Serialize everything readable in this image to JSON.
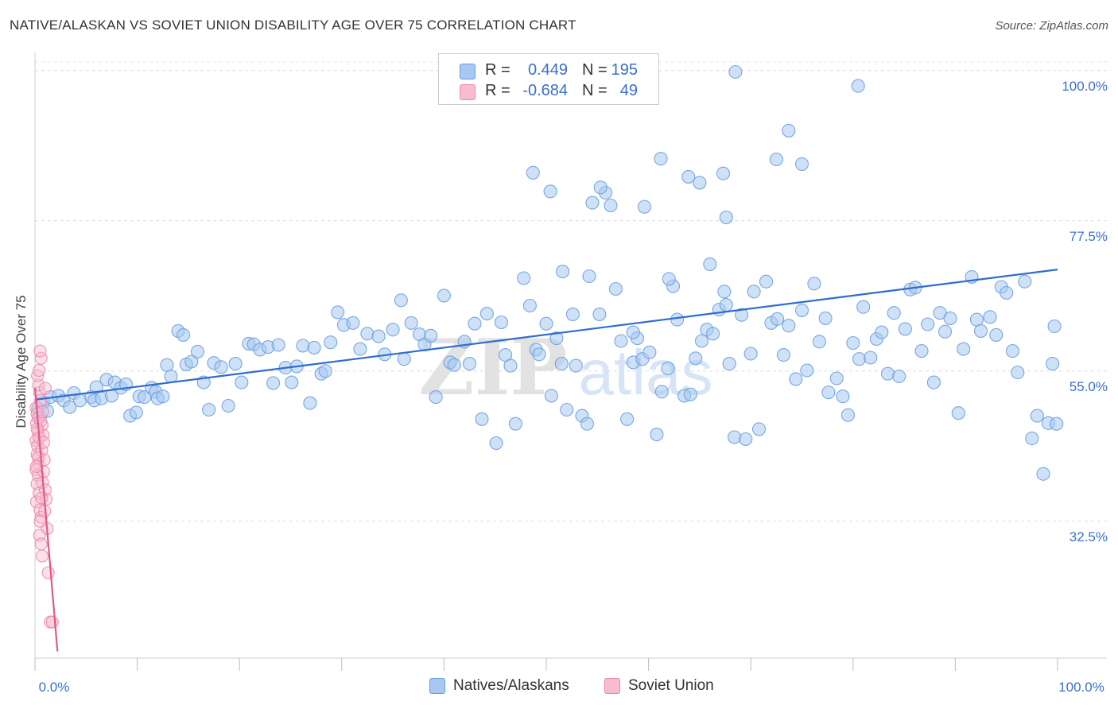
{
  "title": "NATIVE/ALASKAN VS SOVIET UNION DISABILITY AGE OVER 75 CORRELATION CHART",
  "source": "Source: ZipAtlas.com",
  "watermark": {
    "zip": "ZIP",
    "atlas": "atlas"
  },
  "legend": {
    "rows": [
      {
        "r_label": "R =",
        "r_value": "0.449",
        "n_label": "N =",
        "n_value": "195",
        "color": "#a8c8f0",
        "border": "#6b9ee0"
      },
      {
        "r_label": "R =",
        "r_value": "-0.684",
        "n_label": "N =",
        "n_value": "49",
        "color": "#f8bcd0",
        "border": "#ea8aaa"
      }
    ]
  },
  "bottom_legend": [
    {
      "label": "Natives/Alaskans",
      "color": "#a8c8f0",
      "border": "#6b9ee0"
    },
    {
      "label": "Soviet Union",
      "color": "#f8bcd0",
      "border": "#ea8aaa"
    }
  ],
  "chart_data": {
    "type": "scatter",
    "title": "NATIVE/ALASKAN VS SOVIET UNION DISABILITY AGE OVER 75 CORRELATION CHART",
    "xlabel": "",
    "ylabel": "Disability Age Over 75",
    "xlim": [
      0,
      100
    ],
    "ylim": [
      12,
      102
    ],
    "x_tick_labels": [
      {
        "value": 0,
        "label": "0.0%"
      },
      {
        "value": 100,
        "label": "100.0%"
      }
    ],
    "y_tick_labels": [
      {
        "value": 32.5,
        "label": "32.5%"
      },
      {
        "value": 55.0,
        "label": "55.0%"
      },
      {
        "value": 77.5,
        "label": "77.5%"
      },
      {
        "value": 100.0,
        "label": "100.0%"
      }
    ],
    "grid": true,
    "series": [
      {
        "name": "Natives/Alaskans",
        "color": "#6b9ee0",
        "fill": "#a8c8f0",
        "trend": {
          "x": [
            0,
            100
          ],
          "y": [
            50.7,
            70.2
          ]
        },
        "points": [
          [
            0.3,
            49.4
          ],
          [
            0.5,
            48.2
          ],
          [
            0.8,
            50.3
          ],
          [
            1.2,
            49.0
          ],
          [
            1.5,
            51.1
          ],
          [
            2.3,
            51.3
          ],
          [
            2.8,
            50.6
          ],
          [
            3.4,
            49.6
          ],
          [
            3.8,
            51.7
          ],
          [
            4.4,
            50.6
          ],
          [
            5.5,
            51.1
          ],
          [
            5.8,
            50.6
          ],
          [
            6.0,
            52.6
          ],
          [
            6.5,
            50.9
          ],
          [
            7.0,
            53.7
          ],
          [
            7.5,
            51.3
          ],
          [
            7.8,
            53.3
          ],
          [
            8.4,
            52.5
          ],
          [
            8.9,
            53.0
          ],
          [
            9.3,
            48.3
          ],
          [
            9.9,
            48.8
          ],
          [
            10.2,
            51.2
          ],
          [
            10.7,
            51.1
          ],
          [
            11.4,
            52.5
          ],
          [
            11.8,
            51.9
          ],
          [
            12.0,
            50.9
          ],
          [
            12.5,
            51.2
          ],
          [
            12.9,
            55.9
          ],
          [
            13.3,
            54.2
          ],
          [
            14.0,
            61.0
          ],
          [
            14.5,
            60.4
          ],
          [
            14.8,
            56.0
          ],
          [
            15.3,
            56.4
          ],
          [
            15.9,
            57.9
          ],
          [
            16.5,
            53.3
          ],
          [
            17.0,
            49.2
          ],
          [
            17.5,
            56.2
          ],
          [
            18.2,
            55.6
          ],
          [
            18.9,
            49.8
          ],
          [
            19.6,
            56.1
          ],
          [
            20.2,
            53.3
          ],
          [
            20.9,
            59.1
          ],
          [
            21.4,
            59.0
          ],
          [
            22.0,
            58.2
          ],
          [
            22.8,
            58.6
          ],
          [
            23.3,
            53.2
          ],
          [
            23.8,
            58.9
          ],
          [
            24.5,
            55.5
          ],
          [
            25.1,
            53.3
          ],
          [
            25.6,
            55.7
          ],
          [
            26.2,
            58.8
          ],
          [
            26.9,
            50.2
          ],
          [
            27.3,
            58.5
          ],
          [
            28.0,
            54.6
          ],
          [
            28.4,
            55.0
          ],
          [
            28.9,
            59.3
          ],
          [
            29.6,
            63.8
          ],
          [
            30.2,
            61.9
          ],
          [
            31.1,
            62.2
          ],
          [
            31.8,
            58.3
          ],
          [
            32.5,
            60.6
          ],
          [
            33.6,
            60.2
          ],
          [
            34.2,
            57.5
          ],
          [
            35.0,
            61.2
          ],
          [
            35.8,
            65.6
          ],
          [
            36.1,
            56.8
          ],
          [
            36.8,
            62.2
          ],
          [
            37.6,
            60.5
          ],
          [
            38.1,
            59.0
          ],
          [
            38.7,
            60.3
          ],
          [
            39.2,
            51.1
          ],
          [
            40.0,
            66.3
          ],
          [
            40.6,
            56.3
          ],
          [
            41.0,
            55.9
          ],
          [
            42.0,
            59.4
          ],
          [
            42.5,
            56.1
          ],
          [
            43.0,
            62.1
          ],
          [
            43.7,
            47.8
          ],
          [
            44.2,
            63.6
          ],
          [
            45.1,
            44.2
          ],
          [
            45.6,
            62.3
          ],
          [
            46.0,
            57.4
          ],
          [
            46.5,
            55.8
          ],
          [
            47.0,
            47.1
          ],
          [
            47.8,
            68.9
          ],
          [
            48.4,
            64.8
          ],
          [
            49.0,
            58.2
          ],
          [
            49.3,
            57.5
          ],
          [
            50.0,
            62.1
          ],
          [
            50.5,
            51.3
          ],
          [
            51.0,
            59.9
          ],
          [
            51.5,
            56.1
          ],
          [
            52.0,
            49.2
          ],
          [
            52.6,
            63.5
          ],
          [
            52.9,
            55.8
          ],
          [
            53.5,
            48.3
          ],
          [
            54.0,
            47.1
          ],
          [
            54.5,
            80.2
          ],
          [
            55.2,
            63.5
          ],
          [
            55.8,
            81.7
          ],
          [
            56.3,
            79.8
          ],
          [
            56.8,
            67.3
          ],
          [
            57.3,
            59.5
          ],
          [
            57.9,
            47.8
          ],
          [
            58.5,
            56.3
          ],
          [
            58.9,
            59.9
          ],
          [
            59.4,
            56.8
          ],
          [
            60.1,
            57.8
          ],
          [
            60.8,
            45.5
          ],
          [
            61.3,
            51.9
          ],
          [
            61.9,
            55.4
          ],
          [
            62.4,
            67.7
          ],
          [
            62.8,
            62.7
          ],
          [
            63.5,
            51.3
          ],
          [
            64.1,
            51.5
          ],
          [
            64.6,
            56.9
          ],
          [
            65.2,
            59.5
          ],
          [
            65.7,
            61.2
          ],
          [
            66.3,
            60.6
          ],
          [
            66.9,
            64.2
          ],
          [
            67.4,
            66.9
          ],
          [
            67.9,
            56.1
          ],
          [
            68.4,
            45.1
          ],
          [
            69.1,
            63.4
          ],
          [
            69.5,
            44.8
          ],
          [
            70.0,
            57.6
          ],
          [
            70.3,
            66.9
          ],
          [
            70.8,
            46.3
          ],
          [
            71.5,
            68.4
          ],
          [
            72.0,
            62.2
          ],
          [
            72.6,
            62.8
          ],
          [
            73.2,
            57.4
          ],
          [
            73.7,
            61.8
          ],
          [
            74.4,
            53.8
          ],
          [
            75.0,
            64.1
          ],
          [
            75.5,
            55.1
          ],
          [
            76.2,
            68.1
          ],
          [
            76.7,
            59.4
          ],
          [
            77.3,
            62.9
          ],
          [
            77.6,
            51.8
          ],
          [
            78.4,
            53.9
          ],
          [
            79.0,
            51.2
          ],
          [
            79.5,
            48.4
          ],
          [
            80.0,
            59.2
          ],
          [
            80.6,
            56.8
          ],
          [
            81.0,
            64.6
          ],
          [
            81.7,
            57.0
          ],
          [
            82.3,
            59.8
          ],
          [
            82.8,
            60.8
          ],
          [
            83.4,
            54.6
          ],
          [
            84.0,
            63.7
          ],
          [
            84.5,
            54.2
          ],
          [
            85.1,
            61.3
          ],
          [
            85.6,
            67.2
          ],
          [
            86.1,
            67.5
          ],
          [
            86.7,
            58.0
          ],
          [
            87.3,
            62.0
          ],
          [
            87.9,
            53.3
          ],
          [
            88.5,
            63.7
          ],
          [
            89.0,
            60.9
          ],
          [
            89.5,
            62.9
          ],
          [
            90.3,
            48.7
          ],
          [
            90.8,
            58.3
          ],
          [
            91.6,
            69.1
          ],
          [
            92.1,
            62.7
          ],
          [
            92.5,
            61.0
          ],
          [
            93.4,
            63.1
          ],
          [
            94.0,
            60.4
          ],
          [
            94.5,
            67.6
          ],
          [
            95.0,
            66.7
          ],
          [
            95.6,
            58.0
          ],
          [
            96.1,
            54.8
          ],
          [
            96.8,
            68.4
          ],
          [
            97.5,
            44.9
          ],
          [
            98.0,
            48.3
          ],
          [
            98.6,
            39.6
          ],
          [
            99.1,
            47.2
          ],
          [
            99.5,
            56.1
          ],
          [
            99.7,
            61.7
          ],
          [
            99.9,
            47.1
          ],
          [
            68.5,
            99.8
          ],
          [
            80.5,
            97.7
          ],
          [
            73.7,
            91.0
          ],
          [
            75.0,
            86.0
          ],
          [
            61.2,
            86.8
          ],
          [
            72.5,
            86.7
          ],
          [
            65.0,
            83.2
          ],
          [
            67.3,
            84.6
          ],
          [
            48.7,
            84.7
          ],
          [
            63.9,
            84.1
          ],
          [
            55.3,
            82.5
          ],
          [
            59.6,
            79.6
          ],
          [
            50.4,
            81.9
          ],
          [
            67.6,
            78.0
          ],
          [
            66.0,
            71.0
          ],
          [
            62.0,
            68.8
          ],
          [
            67.6,
            64.9
          ],
          [
            54.2,
            69.2
          ],
          [
            51.6,
            69.9
          ],
          [
            58.5,
            60.8
          ]
        ]
      },
      {
        "name": "Soviet Union",
        "color": "#ea8aaa",
        "fill": "#f8bcd0",
        "trend": {
          "x": [
            0,
            2.2
          ],
          "y": [
            52.5,
            13.0
          ]
        },
        "points": [
          [
            0.1,
            49.5
          ],
          [
            0.2,
            48.6
          ],
          [
            0.15,
            47.2
          ],
          [
            0.3,
            45.9
          ],
          [
            0.1,
            44.6
          ],
          [
            0.25,
            43.8
          ],
          [
            0.2,
            42.5
          ],
          [
            0.35,
            41.1
          ],
          [
            0.1,
            40.2
          ],
          [
            0.3,
            39.4
          ],
          [
            0.2,
            38.1
          ],
          [
            0.4,
            36.7
          ],
          [
            0.15,
            35.4
          ],
          [
            0.5,
            34.2
          ],
          [
            0.6,
            33.1
          ],
          [
            0.45,
            51.8
          ],
          [
            0.55,
            50.6
          ],
          [
            0.35,
            52.9
          ],
          [
            0.25,
            54.3
          ],
          [
            0.4,
            55.1
          ],
          [
            0.6,
            56.9
          ],
          [
            0.5,
            58.0
          ],
          [
            0.7,
            46.9
          ],
          [
            0.8,
            45.4
          ],
          [
            0.65,
            43.1
          ],
          [
            0.9,
            41.7
          ],
          [
            0.85,
            39.9
          ],
          [
            0.75,
            38.3
          ],
          [
            1.0,
            37.2
          ],
          [
            1.1,
            35.8
          ],
          [
            0.95,
            34.0
          ],
          [
            1.2,
            31.4
          ],
          [
            0.45,
            30.4
          ],
          [
            0.6,
            29.1
          ],
          [
            0.7,
            27.3
          ],
          [
            1.3,
            24.8
          ],
          [
            1.5,
            17.4
          ],
          [
            1.7,
            17.4
          ],
          [
            0.3,
            48.0
          ],
          [
            0.55,
            47.5
          ],
          [
            0.75,
            48.9
          ],
          [
            0.2,
            46.3
          ],
          [
            0.4,
            45.0
          ],
          [
            0.85,
            44.3
          ],
          [
            0.3,
            42.0
          ],
          [
            0.15,
            40.7
          ],
          [
            0.65,
            36.0
          ],
          [
            0.5,
            32.5
          ],
          [
            1.0,
            52.4
          ]
        ]
      }
    ]
  }
}
